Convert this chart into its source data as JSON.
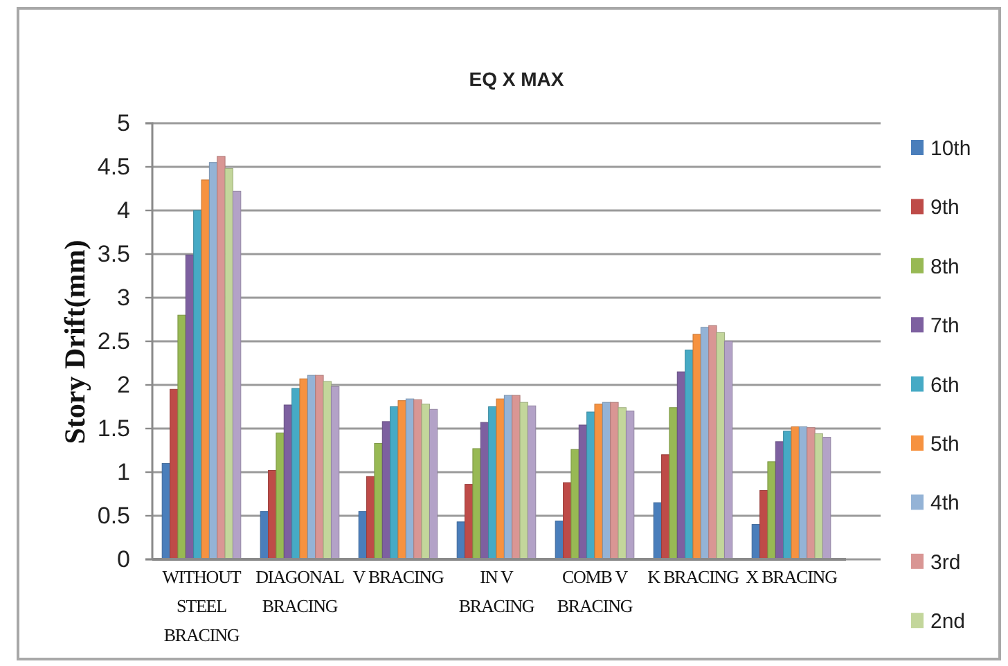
{
  "chart_data": {
    "type": "bar",
    "title": "EQ X MAX",
    "ylabel": "Story Drift(mm)",
    "categories": [
      "WITHOUT STEEL BRACING",
      "DIAGONAL BRACING",
      "V BRACING",
      "IN V BRACING",
      "COMB V BRACING",
      "K BRACING",
      "X BRACING"
    ],
    "series": [
      {
        "name": "10th",
        "color": "#4a7ebb",
        "values": [
          1.1,
          0.55,
          0.55,
          0.43,
          0.44,
          0.65,
          0.4
        ]
      },
      {
        "name": "9th",
        "color": "#be4b48",
        "values": [
          1.95,
          1.02,
          0.95,
          0.86,
          0.88,
          1.2,
          0.79
        ]
      },
      {
        "name": "8th",
        "color": "#98b954",
        "values": [
          2.8,
          1.45,
          1.33,
          1.27,
          1.26,
          1.74,
          1.12
        ]
      },
      {
        "name": "7th",
        "color": "#7d60a0",
        "values": [
          3.49,
          1.77,
          1.58,
          1.57,
          1.54,
          2.15,
          1.35
        ]
      },
      {
        "name": "6th",
        "color": "#46aac5",
        "values": [
          4.0,
          1.96,
          1.75,
          1.75,
          1.69,
          2.4,
          1.47
        ]
      },
      {
        "name": "5th",
        "color": "#f69240",
        "values": [
          4.35,
          2.07,
          1.82,
          1.84,
          1.78,
          2.58,
          1.52
        ]
      },
      {
        "name": "4th",
        "color": "#94b3d6",
        "values": [
          4.55,
          2.11,
          1.84,
          1.88,
          1.8,
          2.66,
          1.52
        ]
      },
      {
        "name": "3rd",
        "color": "#d99694",
        "values": [
          4.62,
          2.11,
          1.83,
          1.88,
          1.8,
          2.68,
          1.51
        ]
      },
      {
        "name": "2nd",
        "color": "#c3d69b",
        "values": [
          4.48,
          2.04,
          1.78,
          1.8,
          1.74,
          2.6,
          1.44
        ]
      },
      {
        "color": "#b3a2c7",
        "values": [
          4.22,
          1.98,
          1.72,
          1.76,
          1.7,
          2.5,
          1.4
        ]
      }
    ],
    "ylim": [
      0,
      5
    ],
    "yticks": [
      0,
      0.5,
      1,
      1.5,
      2,
      2.5,
      3,
      3.5,
      4,
      4.5,
      5
    ],
    "grid": "y",
    "legend": "right"
  }
}
